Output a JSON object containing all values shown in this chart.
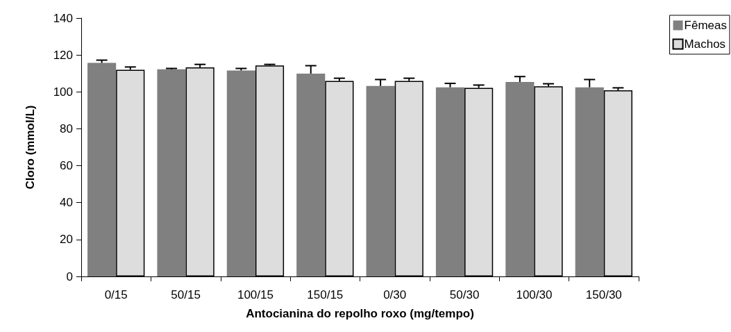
{
  "chart_data": {
    "type": "bar",
    "xlabel": "Antocianina do repolho roxo (mg/tempo)",
    "ylabel": "Cloro (mmol/L)",
    "categories": [
      "0/15",
      "50/15",
      "100/15",
      "150/15",
      "0/30",
      "50/30",
      "100/30",
      "150/30"
    ],
    "series": [
      {
        "name": "Fêmeas",
        "color": "#808080",
        "values": [
          115.7,
          112.2,
          111.6,
          109.9,
          103.2,
          102.5,
          105.4,
          102.5
        ],
        "errors": [
          [
            115.7,
            117.2
          ],
          [
            112.2,
            112.7
          ],
          [
            111.6,
            112.7
          ],
          [
            109.9,
            114.2
          ],
          [
            103.2,
            106.7
          ],
          [
            102.5,
            104.6
          ],
          [
            105.4,
            108.3
          ],
          [
            102.5,
            106.7
          ]
        ]
      },
      {
        "name": "Machos",
        "color": "#dddddd",
        "values": [
          112.0,
          113.3,
          114.3,
          105.9,
          105.9,
          102.2,
          103.0,
          100.9
        ],
        "errors": [
          [
            112.0,
            113.5
          ],
          [
            113.3,
            114.9
          ],
          [
            114.3,
            114.9
          ],
          [
            105.9,
            107.4
          ],
          [
            105.9,
            107.4
          ],
          [
            102.2,
            103.7
          ],
          [
            103.0,
            104.4
          ],
          [
            100.9,
            102.2
          ]
        ]
      }
    ],
    "ylim": [
      0,
      140
    ],
    "yticks": [
      0,
      20,
      40,
      60,
      80,
      100,
      120,
      140
    ],
    "grid": false,
    "legend": "top right"
  }
}
